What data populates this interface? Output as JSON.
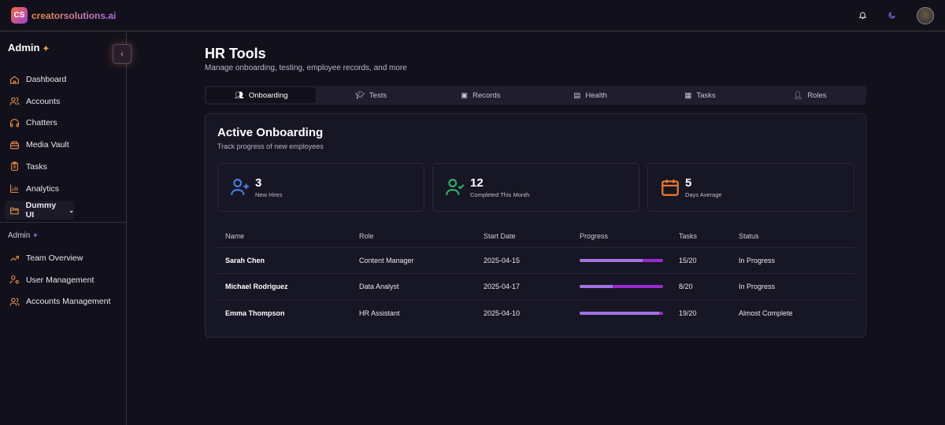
{
  "header": {
    "logo_text": "CS",
    "brand": "creatorsolutions.ai"
  },
  "sidebar": {
    "title": "Admin",
    "items": [
      {
        "label": "Dashboard"
      },
      {
        "label": "Accounts"
      },
      {
        "label": "Chatters"
      },
      {
        "label": "Media Vault"
      },
      {
        "label": "Tasks"
      },
      {
        "label": "Analytics"
      },
      {
        "label": "Dummy UI"
      }
    ],
    "admin_section": "Admin",
    "admin_items": [
      {
        "label": "Team Overview"
      },
      {
        "label": "User Management"
      },
      {
        "label": "Accounts Management"
      }
    ]
  },
  "page": {
    "title": "HR Tools",
    "subtitle": "Manage onboarding, testing, employee records, and more"
  },
  "tabs": [
    {
      "label": "Onboarding"
    },
    {
      "label": "Tests"
    },
    {
      "label": "Records"
    },
    {
      "label": "Health"
    },
    {
      "label": "Tasks"
    },
    {
      "label": "Roles"
    }
  ],
  "card": {
    "title": "Active Onboarding",
    "subtitle": "Track progress of new employees",
    "stats": [
      {
        "value": "3",
        "label": "New Hires",
        "color": "#4a7be0"
      },
      {
        "value": "12",
        "label": "Completed This Month",
        "color": "#2fb36a"
      },
      {
        "value": "5",
        "label": "Days Average",
        "color": "#f07a30"
      }
    ],
    "columns": [
      "Name",
      "Role",
      "Start Date",
      "Progress",
      "Tasks",
      "Status"
    ],
    "rows": [
      {
        "name": "Sarah Chen",
        "role": "Content Manager",
        "start": "2025-04-15",
        "progress": 75,
        "tasks": "15/20",
        "status": "In Progress"
      },
      {
        "name": "Michael Rodriguez",
        "role": "Data Analyst",
        "start": "2025-04-17",
        "progress": 40,
        "tasks": "8/20",
        "status": "In Progress"
      },
      {
        "name": "Emma Thompson",
        "role": "HR Assistant",
        "start": "2025-04-10",
        "progress": 95,
        "tasks": "19/20",
        "status": "Almost Complete"
      }
    ]
  }
}
